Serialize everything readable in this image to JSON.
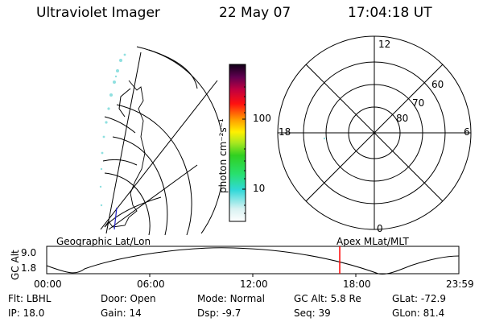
{
  "header": {
    "title": "Ultraviolet Imager",
    "date": "22 May 07",
    "time": "17:04:18 UT"
  },
  "colorbar": {
    "unit_label": "photon cm⁻²s⁻¹",
    "ticks": [
      "100",
      "10"
    ]
  },
  "polar_plot": {
    "mlt_labels": {
      "top": "12",
      "right": "6",
      "bottom": "0",
      "left": "18"
    },
    "lat_labels": [
      "60",
      "70",
      "80"
    ]
  },
  "map_labels": {
    "left": "Geographic Lat/Lon",
    "right": "Apex MLat/MLT"
  },
  "timeline": {
    "axis_label": "GC Alt",
    "y_max": "9.0",
    "y_min": "1.8",
    "time_ticks": [
      "00:00",
      "06:00",
      "12:00",
      "18:00",
      "23:59"
    ],
    "current_time_fraction": 0.711,
    "current_marker_color": "#ff0000"
  },
  "status": {
    "flt": {
      "label": "Flt:",
      "value": "LBHL"
    },
    "ip": {
      "label": "IP:",
      "value": "18.0"
    },
    "door": {
      "label": "Door:",
      "value": "Open"
    },
    "gain": {
      "label": "Gain:",
      "value": "14"
    },
    "mode": {
      "label": "Mode:",
      "value": "Normal"
    },
    "dsp": {
      "label": "Dsp:",
      "value": "-9.7"
    },
    "gcalt": {
      "label": "GC Alt:",
      "value": "5.8 Re"
    },
    "seq": {
      "label": "Seq:",
      "value": "39"
    },
    "glat": {
      "label": "GLat:",
      "value": "-72.9"
    },
    "glon": {
      "label": "GLon:",
      "value": "81.4"
    }
  }
}
